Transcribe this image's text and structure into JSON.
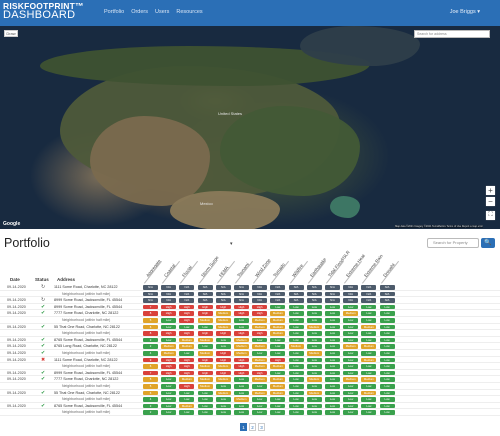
{
  "brand": {
    "line1": "RISKFOOTPRINT™",
    "line2": "DASHBOARD"
  },
  "nav": {
    "items": [
      "Portfolio",
      "Orders",
      "Users",
      "Resources"
    ],
    "user": "Joe Briggs ▾"
  },
  "map": {
    "draw_button": "Draw",
    "search_placeholder": "Search for address",
    "google": "Google",
    "attribution": "Map data ©2021 Imagery ©2021 TerraMetrics  Terms of Use  Report a map error",
    "country_label": "United States",
    "mexico_label": "Mexico"
  },
  "portfolio": {
    "title": "Portfolio",
    "filter_label": "▾",
    "search_placeholder": "Search for Property",
    "search_button": "🔍"
  },
  "columns": {
    "date": "Date",
    "status": "Status",
    "address": "Address",
    "risks": [
      "Aggregate",
      "Coastal",
      "Fluvial",
      "Storm Surge",
      "FEMA",
      "Tsunami",
      "Wind Zone",
      "Tornado",
      "Wildfire",
      "Earthquake",
      "Tidal Flood/SLR",
      "Extreme Heat",
      "Extreme Rain",
      "Drought"
    ]
  },
  "level_colors": {
    "N/A": "#4d5b6b",
    "Low": "#3aa14d",
    "Medium": "#e0a42a",
    "High": "#d9413b",
    "Very High": "#b8312e"
  },
  "rows": [
    {
      "date": "09-14-2020",
      "status": "refresh",
      "address": "1111 Some Road, Charlotte, NC 28122",
      "levels": [
        "N/A",
        "N/A",
        "N/A",
        "N/A",
        "N/A",
        "N/A",
        "N/A",
        "N/A",
        "N/A",
        "N/A",
        "N/A",
        "N/A",
        "N/A",
        "N/A"
      ]
    },
    {
      "date": "",
      "status": "",
      "address": "Neighborhood (within half mile)",
      "sub": true,
      "levels": [
        "N/A",
        "N/A",
        "N/A",
        "N/A",
        "N/A",
        "N/A",
        "N/A",
        "N/A",
        "N/A",
        "N/A",
        "N/A",
        "N/A",
        "N/A",
        "N/A"
      ]
    },
    {
      "date": "09-14-2020",
      "status": "refresh",
      "address": "8999 Some Road, Jacksonville, FL 45544",
      "levels": [
        "N/A",
        "N/A",
        "N/A",
        "N/A",
        "N/A",
        "N/A",
        "N/A",
        "N/A",
        "N/A",
        "N/A",
        "N/A",
        "N/A",
        "N/A",
        "N/A"
      ]
    },
    {
      "date": "09-14-2020",
      "status": "check",
      "address": "8999 Some Road, Jacksonville, FL 45544",
      "levels": [
        "7",
        "High",
        "High",
        "High",
        "High",
        "High",
        "High",
        "Low",
        "Low",
        "Low",
        "Low",
        "Low",
        "Low",
        "Low"
      ]
    },
    {
      "date": "09-14-2020",
      "status": "check",
      "address": "7777 Some Road, Charlotte, NC 28122",
      "levels": [
        "8",
        "High",
        "High",
        "High",
        "Medium",
        "High",
        "High",
        "Medium",
        "Low",
        "Low",
        "Low",
        "Medium",
        "Low",
        "Low"
      ]
    },
    {
      "date": "",
      "status": "",
      "address": "Neighborhood (within half mile)",
      "sub": true,
      "levels": [
        "5",
        "Low",
        "High",
        "Medium",
        "Medium",
        "Low",
        "Medium",
        "Medium",
        "Low",
        "Low",
        "Low",
        "Low",
        "Low",
        "Low"
      ]
    },
    {
      "date": "09-14-2020",
      "status": "check",
      "address": "55 That One Road, Charlotte, NC 28122",
      "levels": [
        "6",
        "Low",
        "Low",
        "Low",
        "Medium",
        "Low",
        "Medium",
        "Medium",
        "Low",
        "Medium",
        "Low",
        "Low",
        "Medium",
        "Low"
      ]
    },
    {
      "date": "",
      "status": "",
      "address": "Neighborhood (within half mile)",
      "sub": true,
      "levels": [
        "8",
        "High",
        "High",
        "High",
        "High",
        "High",
        "High",
        "Medium",
        "Low",
        "Low",
        "Low",
        "Low",
        "Low",
        "Low"
      ]
    },
    {
      "date": "09-14-2020",
      "status": "check",
      "address": "8765 Some Road, Jacksonville, FL 45544",
      "levels": [
        "3",
        "Low",
        "Medium",
        "Medium",
        "Low",
        "Medium",
        "Low",
        "Low",
        "Low",
        "Low",
        "Low",
        "Low",
        "Low",
        "Low"
      ]
    },
    {
      "date": "09-14-2020",
      "status": "check",
      "address": "8765 Long Road, Charlotte, NC 28122",
      "levels": [
        "2",
        "Medium",
        "Medium",
        "Low",
        "Low",
        "Medium",
        "Medium",
        "Low",
        "Medium",
        "Low",
        "Low",
        "Medium",
        "Medium",
        "Low"
      ]
    },
    {
      "date": "09-14-2020",
      "status": "check",
      "address": "Neighborhood (within half mile)",
      "sub": true,
      "levels": [
        "4",
        "Medium",
        "Low",
        "Medium",
        "High",
        "Medium",
        "Low",
        "Low",
        "Low",
        "Medium",
        "Low",
        "Low",
        "Low",
        "Low"
      ]
    },
    {
      "date": "09-14-2020",
      "status": "x",
      "address": "1111 Some Road, Charlotte, NC 28122",
      "levels": [
        "9",
        "High",
        "High",
        "High",
        "High",
        "High",
        "Medium",
        "High",
        "Low",
        "Low",
        "Low",
        "Low",
        "Medium",
        "Low"
      ]
    },
    {
      "date": "",
      "status": "",
      "address": "Neighborhood (within half mile)",
      "sub": true,
      "levels": [
        "6",
        "High",
        "High",
        "Medium",
        "Medium",
        "High",
        "Medium",
        "Medium",
        "Low",
        "Low",
        "Low",
        "Low",
        "Low",
        "Low"
      ]
    },
    {
      "date": "09-14-2020",
      "status": "check",
      "address": "8999 Some Road, Jacksonville, FL 45544",
      "levels": [
        "7",
        "High",
        "High",
        "High",
        "High",
        "High",
        "High",
        "Low",
        "Low",
        "Low",
        "Low",
        "Low",
        "Low",
        "Low"
      ]
    },
    {
      "date": "09-14-2020",
      "status": "check",
      "address": "7777 Some Road, Charlotte, NC 28122",
      "levels": [
        "5",
        "Low",
        "Medium",
        "Medium",
        "Medium",
        "Low",
        "Medium",
        "Medium",
        "Low",
        "Medium",
        "Low",
        "Medium",
        "Medium",
        "Low"
      ]
    },
    {
      "date": "",
      "status": "",
      "address": "Neighborhood (within half mile)",
      "sub": true,
      "levels": [
        "5",
        "Low",
        "High",
        "Medium",
        "Low",
        "Low",
        "Low",
        "Medium",
        "Low",
        "Low",
        "Low",
        "Low",
        "Low",
        "Low"
      ]
    },
    {
      "date": "09-14-2020",
      "status": "check",
      "address": "55 That One Road, Charlotte, NC 28122",
      "levels": [
        "6",
        "Low",
        "Low",
        "Low",
        "Medium",
        "Low",
        "Medium",
        "Medium",
        "Low",
        "Medium",
        "Low",
        "Low",
        "Medium",
        "Low"
      ]
    },
    {
      "date": "",
      "status": "",
      "address": "Neighborhood (within half mile)",
      "sub": true,
      "levels": [
        "4",
        "Low",
        "Low",
        "Low",
        "Low",
        "Medium",
        "Low",
        "Low",
        "Low",
        "Low",
        "Low",
        "Low",
        "Low",
        "Low"
      ]
    },
    {
      "date": "09-14-2020",
      "status": "check",
      "address": "8765 Some Road, Jacksonville, FL 45544",
      "levels": [
        "3",
        "Low",
        "Medium",
        "Low",
        "Low",
        "Low",
        "Low",
        "Low",
        "Low",
        "Low",
        "Low",
        "Low",
        "Low",
        "Low"
      ]
    },
    {
      "date": "",
      "status": "",
      "address": "Neighborhood (within half mile)",
      "sub": true,
      "levels": [
        "2",
        "Low",
        "Low",
        "Low",
        "Low",
        "Low",
        "Low",
        "Low",
        "Low",
        "Low",
        "Low",
        "Low",
        "Low",
        "Low"
      ]
    }
  ],
  "pagination": [
    "1",
    "2",
    "3"
  ]
}
